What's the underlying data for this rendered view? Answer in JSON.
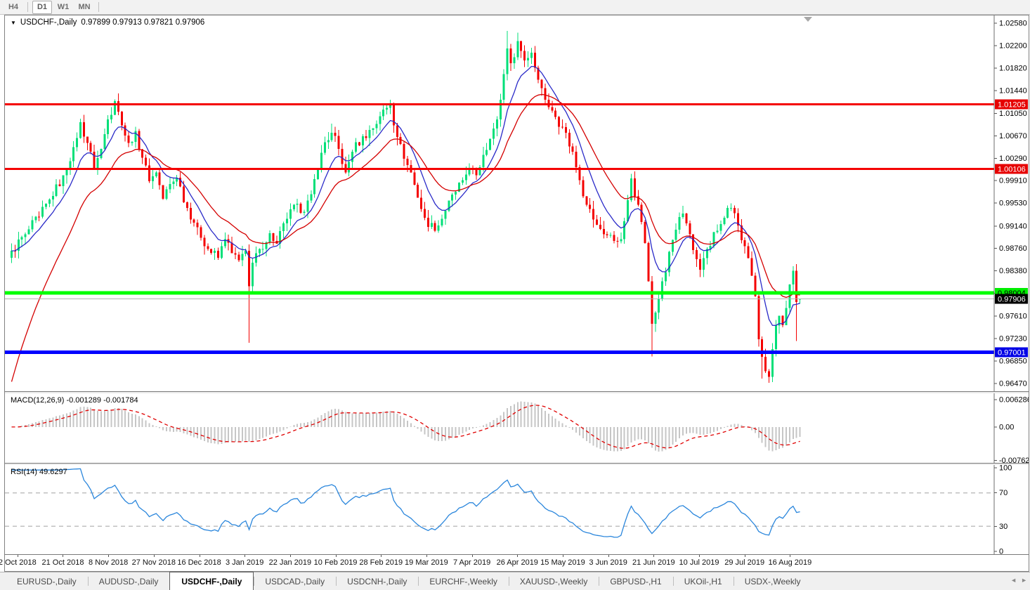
{
  "toolbar": {
    "timeframes": [
      {
        "label": "H4",
        "active": false
      },
      {
        "label": "D1",
        "active": true
      },
      {
        "label": "W1",
        "active": false
      },
      {
        "label": "MN",
        "active": false
      }
    ]
  },
  "chart_data": {
    "type": "candlestick",
    "symbol_title": "USDCHF-,Daily",
    "quote_text": "0.97899 0.97913 0.97821 0.97906",
    "quote": {
      "open": "0.97899",
      "high": "0.97913",
      "low": "0.97821",
      "close": "0.97906"
    },
    "candle_count": 230,
    "price_range": {
      "max": 1.027,
      "min": 0.9635
    },
    "price_axis_ticks": [
      "1.02580",
      "1.02200",
      "1.01820",
      "1.01440",
      "1.01050",
      "1.00670",
      "1.00290",
      "0.99910",
      "0.99530",
      "0.99140",
      "0.98760",
      "0.98380",
      "0.98000",
      "0.97610",
      "0.97230",
      "0.96850",
      "0.96470"
    ],
    "x_labels": [
      "2 Oct 2018",
      "21 Oct 2018",
      "8 Nov 2018",
      "27 Nov 2018",
      "16 Dec 2018",
      "3 Jan 2019",
      "22 Jan 2019",
      "10 Feb 2019",
      "28 Feb 2019",
      "19 Mar 2019",
      "7 Apr 2019",
      "26 Apr 2019",
      "15 May 2019",
      "3 Jun 2019",
      "21 Jun 2019",
      "10 Jul 2019",
      "29 Jul 2019",
      "16 Aug 2019"
    ],
    "levels": [
      {
        "value": 1.01205,
        "label": "1.01205",
        "line_color": "#F40000",
        "line_width": 3,
        "badge_bg": "#E60000",
        "badge_fg": "#FFFFFF"
      },
      {
        "value": 1.00106,
        "label": "1.00106",
        "line_color": "#F40000",
        "line_width": 3,
        "badge_bg": "#E60000",
        "badge_fg": "#FFFFFF"
      },
      {
        "value": 0.98004,
        "label": "0.98004",
        "line_color": "#00FF00",
        "line_width": 5,
        "badge_bg": "#00EE00",
        "badge_fg": "#000000"
      },
      {
        "value": 0.97001,
        "label": "0.97001",
        "line_color": "#0000FF",
        "line_width": 5,
        "badge_bg": "#0000E6",
        "badge_fg": "#FFFFFF"
      }
    ],
    "current_price": {
      "value": 0.97906,
      "label": "0.97906",
      "line_color": "#B4B4B4",
      "badge_bg": "#000000",
      "badge_fg": "#FFFFFF"
    },
    "close_anchors": [
      [
        0,
        0.9872
      ],
      [
        4,
        0.99
      ],
      [
        8,
        0.993
      ],
      [
        12,
        0.9965
      ],
      [
        15,
        1.0
      ],
      [
        18,
        1.0048
      ],
      [
        20,
        1.009
      ],
      [
        22,
        1.0055
      ],
      [
        24,
        1.0012
      ],
      [
        26,
        1.0045
      ],
      [
        28,
        1.0095
      ],
      [
        30,
        1.0126
      ],
      [
        32,
        1.0085
      ],
      [
        34,
        1.0055
      ],
      [
        36,
        1.0075
      ],
      [
        38,
        1.003
      ],
      [
        40,
        0.999
      ],
      [
        42,
        1.0005
      ],
      [
        44,
        0.996
      ],
      [
        46,
        0.9985
      ],
      [
        48,
        0.9996
      ],
      [
        51,
        0.9945
      ],
      [
        54,
        0.9912
      ],
      [
        57,
        0.9875
      ],
      [
        60,
        0.986
      ],
      [
        62,
        0.9892
      ],
      [
        64,
        0.9868
      ],
      [
        66,
        0.9856
      ],
      [
        68,
        0.9872
      ],
      [
        69,
        0.9812
      ],
      [
        70,
        0.9852
      ],
      [
        72,
        0.9875
      ],
      [
        75,
        0.9902
      ],
      [
        77,
        0.9884
      ],
      [
        80,
        0.9926
      ],
      [
        83,
        0.9952
      ],
      [
        85,
        0.9938
      ],
      [
        87,
        0.9968
      ],
      [
        89,
        1.0012
      ],
      [
        91,
        1.0056
      ],
      [
        93,
        1.0072
      ],
      [
        95,
        1.0045
      ],
      [
        97,
        1.0005
      ],
      [
        99,
        1.004
      ],
      [
        102,
        1.0066
      ],
      [
        105,
        1.008
      ],
      [
        107,
        1.01
      ],
      [
        110,
        1.012
      ],
      [
        112,
        1.0065
      ],
      [
        114,
        1.0028
      ],
      [
        116,
        1.0005
      ],
      [
        118,
        0.9962
      ],
      [
        120,
        0.9928
      ],
      [
        123,
        0.9906
      ],
      [
        126,
        0.994
      ],
      [
        129,
        0.9972
      ],
      [
        131,
        0.9992
      ],
      [
        133,
        1.0012
      ],
      [
        135,
        1.0
      ],
      [
        137,
        1.0035
      ],
      [
        139,
        1.0062
      ],
      [
        141,
        1.0095
      ],
      [
        142,
        1.0128
      ],
      [
        143,
        1.0172
      ],
      [
        144,
        1.0215
      ],
      [
        145,
        1.019
      ],
      [
        147,
        1.0228
      ],
      [
        149,
        1.0195
      ],
      [
        151,
        1.0208
      ],
      [
        153,
        1.0162
      ],
      [
        155,
        1.0128
      ],
      [
        157,
        1.011
      ],
      [
        160,
        1.0082
      ],
      [
        163,
        1.004
      ],
      [
        165,
        0.9992
      ],
      [
        167,
        0.995
      ],
      [
        170,
        0.9916
      ],
      [
        173,
        0.9898
      ],
      [
        176,
        0.9888
      ],
      [
        177,
        0.9892
      ],
      [
        179,
        0.9958
      ],
      [
        180,
        0.9995
      ],
      [
        182,
        0.995
      ],
      [
        184,
        0.9885
      ],
      [
        185,
        0.982
      ],
      [
        186,
        0.9748
      ],
      [
        188,
        0.979
      ],
      [
        190,
        0.9836
      ],
      [
        191,
        0.987
      ],
      [
        193,
        0.9908
      ],
      [
        195,
        0.9935
      ],
      [
        197,
        0.99
      ],
      [
        199,
        0.9858
      ],
      [
        200,
        0.984
      ],
      [
        202,
        0.9875
      ],
      [
        205,
        0.9906
      ],
      [
        207,
        0.9928
      ],
      [
        209,
        0.9945
      ],
      [
        211,
        0.9915
      ],
      [
        213,
        0.988
      ],
      [
        215,
        0.983
      ],
      [
        216,
        0.9795
      ],
      [
        217,
        0.9722
      ],
      [
        218,
        0.9692
      ],
      [
        219,
        0.9668
      ],
      [
        220,
        0.9658
      ],
      [
        221,
        0.9705
      ],
      [
        222,
        0.9745
      ],
      [
        223,
        0.9762
      ],
      [
        224,
        0.9746
      ],
      [
        225,
        0.9775
      ],
      [
        226,
        0.9815
      ],
      [
        227,
        0.9838
      ],
      [
        228,
        0.9785
      ],
      [
        229,
        0.97906
      ]
    ],
    "spikes": [
      {
        "i": 20,
        "high": 1.0096
      },
      {
        "i": 30,
        "high": 1.0129
      },
      {
        "i": 69,
        "low": 0.9716
      },
      {
        "i": 93,
        "high": 1.0088
      },
      {
        "i": 110,
        "high": 1.0128
      },
      {
        "i": 144,
        "high": 1.0245
      },
      {
        "i": 147,
        "high": 1.0242
      },
      {
        "i": 186,
        "low": 0.9693
      },
      {
        "i": 218,
        "low": 0.9655
      },
      {
        "i": 220,
        "low": 0.9648
      },
      {
        "i": 228,
        "low": 0.9719
      }
    ],
    "last_candle": {
      "open": 0.97899,
      "high": 0.97913,
      "low": 0.97821,
      "close": 0.97906
    },
    "moving_averages": [
      {
        "name": "ma-fast",
        "type": "EMA",
        "period": 9,
        "color": "#2A2AC8",
        "style": "solid"
      },
      {
        "name": "ma-slow",
        "type": "EMA",
        "period": 21,
        "color": "#D40000",
        "style": "solid",
        "seed": 0.965
      }
    ],
    "indicators": {
      "macd": {
        "display": "MACD(12,26,9) -0.001289 -0.001784",
        "params": [
          12,
          26,
          9
        ],
        "hist_color": "#C6C6C6",
        "signal_color": "#E00000",
        "range": {
          "max": 0.0074,
          "min": -0.0079
        },
        "axis_ticks": [
          {
            "label": "0.006286",
            "value": 0.006286
          },
          {
            "label": "0.00",
            "value": 0.0
          },
          {
            "label": "-0.00762",
            "value": -0.00762
          }
        ]
      },
      "rsi": {
        "display": "RSI(14) 49.6297",
        "period": 14,
        "value": 49.6297,
        "color": "#2A86DC",
        "level_lines": [
          70,
          30
        ],
        "range": {
          "max": 100,
          "min": 0
        },
        "axis_ticks": [
          {
            "label": "100",
            "value": 100
          },
          {
            "label": "70",
            "value": 70
          },
          {
            "label": "30",
            "value": 30
          },
          {
            "label": "0",
            "value": 0
          }
        ]
      }
    },
    "colors": {
      "bull": "#00DF78",
      "bear": "#F40000",
      "axis_line": "#6E6E6E",
      "axis_text": "#000000",
      "rsi_level_dash": "#C0C0C0"
    },
    "shift_marker": true
  },
  "tabs": {
    "items": [
      {
        "label": "EURUSD-,Daily",
        "active": false
      },
      {
        "label": "AUDUSD-,Daily",
        "active": false
      },
      {
        "label": "USDCHF-,Daily",
        "active": true
      },
      {
        "label": "USDCAD-,Daily",
        "active": false
      },
      {
        "label": "USDCNH-,Daily",
        "active": false
      },
      {
        "label": "EURCHF-,Weekly",
        "active": false
      },
      {
        "label": "XAUUSD-,Weekly",
        "active": false
      },
      {
        "label": "GBPUSD-,H1",
        "active": false
      },
      {
        "label": "UKOil-,H1",
        "active": false
      },
      {
        "label": "USDX-,Weekly",
        "active": false
      }
    ],
    "scroll_left_icon": "◄",
    "scroll_right_icon": "►"
  }
}
